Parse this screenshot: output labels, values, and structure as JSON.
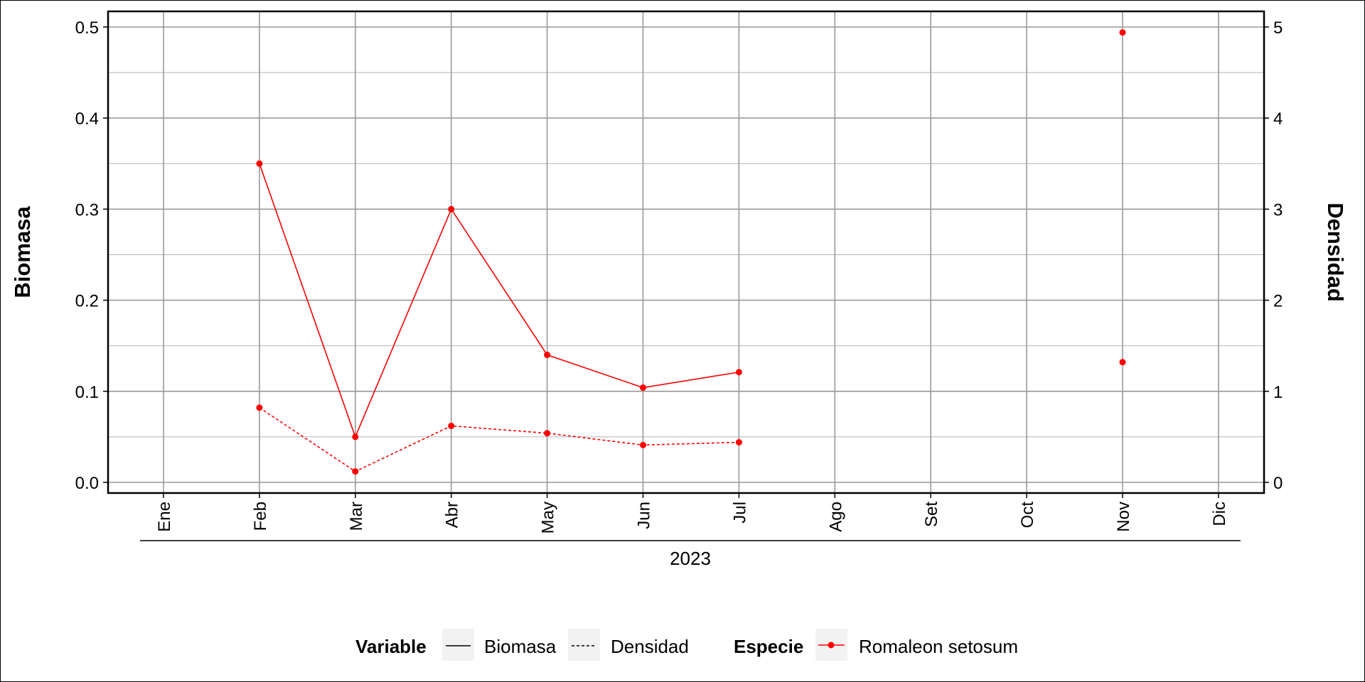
{
  "chart_data": {
    "type": "line",
    "categories": [
      "Ene",
      "Feb",
      "Mar",
      "Abr",
      "May",
      "Jun",
      "Jul",
      "Ago",
      "Set",
      "Oct",
      "Nov",
      "Dic"
    ],
    "year_label": "2023",
    "y_left": {
      "label": "Biomasa",
      "range": [
        0,
        0.5
      ],
      "ticks": [
        "0.0",
        "0.1",
        "0.2",
        "0.3",
        "0.4",
        "0.5"
      ],
      "tick_values": [
        0,
        0.1,
        0.2,
        0.3,
        0.4,
        0.5
      ]
    },
    "y_right": {
      "label": "Densidad",
      "range": [
        0,
        5
      ],
      "ticks": [
        "0",
        "1",
        "2",
        "3",
        "4",
        "5"
      ],
      "tick_values": [
        0,
        1,
        2,
        3,
        4,
        5
      ]
    },
    "grid": true,
    "series": [
      {
        "name": "Biomasa",
        "axis": "left",
        "line_style": "solid",
        "color": "#ff0000",
        "segments": [
          [
            [
              "Feb",
              0.35
            ],
            [
              "Mar",
              0.05
            ],
            [
              "Abr",
              0.3
            ],
            [
              "May",
              0.14
            ],
            [
              "Jun",
              0.104
            ],
            [
              "Jul",
              0.121
            ]
          ],
          [
            [
              "Nov",
              0.494
            ]
          ]
        ]
      },
      {
        "name": "Densidad",
        "axis": "right",
        "line_style": "dashed",
        "color": "#ff0000",
        "segments": [
          [
            [
              "Feb",
              0.82
            ],
            [
              "Mar",
              0.12
            ],
            [
              "Abr",
              0.62
            ],
            [
              "May",
              0.54
            ],
            [
              "Jun",
              0.41
            ],
            [
              "Jul",
              0.44
            ]
          ],
          [
            [
              "Nov",
              1.32
            ]
          ]
        ]
      }
    ],
    "legend": {
      "position": "bottom",
      "variable_title": "Variable",
      "variable_items": [
        "Biomasa",
        "Densidad"
      ],
      "species_title": "Especie",
      "species_items": [
        "Romaleon setosum"
      ]
    }
  }
}
